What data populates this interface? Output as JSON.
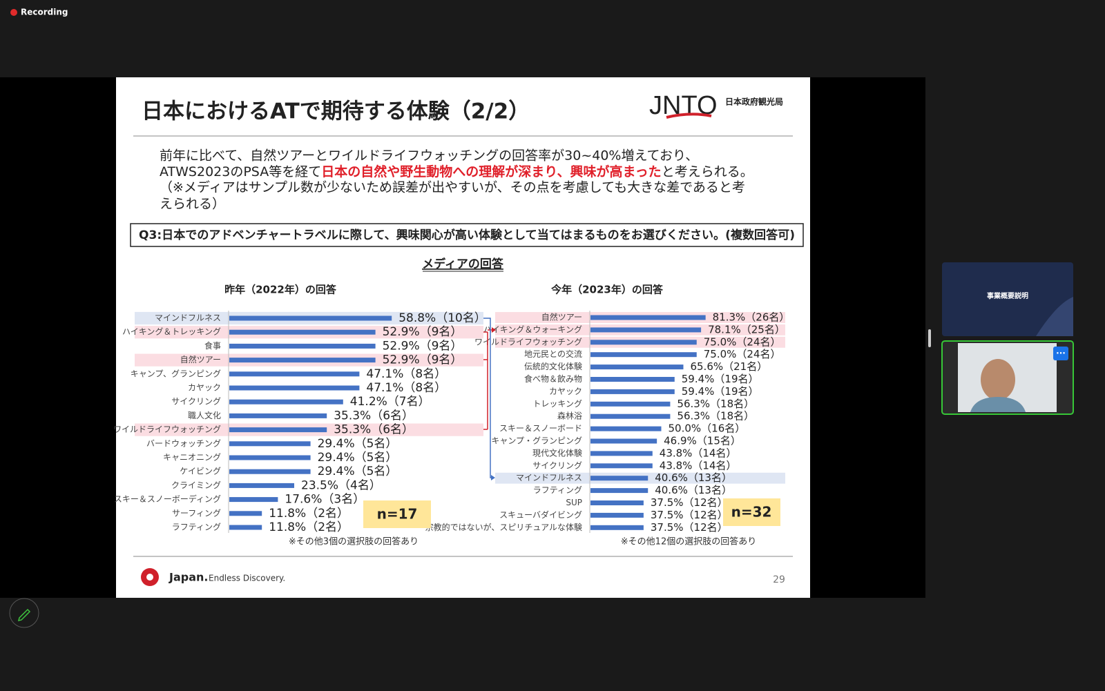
{
  "recording": "Recording",
  "slide": {
    "title": "日本におけるATで期待する体験（2/2）",
    "logo": "JNTO",
    "org": "日本政府観光局",
    "body": {
      "line1": "前年に比べて、自然ツアーとワイルドライフウォッチングの回答率が30~40%増えており、",
      "line2_pre": "ATWS2023のPSA等を経て",
      "line2_red": "日本の自然や野生動物への理解が深まり、興味が高まった",
      "line2_post": "と考えられる。",
      "line3": "（※メディアはサンプル数が少ないため誤差が出やすいが、その点を考慮しても大きな差であると考",
      "line4": "えられる）"
    },
    "question": "Q3:日本でのアドベンチャートラベルに際して、興味関心が高い体験として当てはまるものをお選びください。(複数回答可)",
    "section": "メディアの回答",
    "footer_brand": "Japan.",
    "footer_tagline": "Endless Discovery.",
    "page": "29"
  },
  "chart_data": [
    {
      "type": "bar",
      "title": "昨年（2022年）の回答",
      "categories": [
        "マインドフルネス",
        "ハイキング＆トレッキング",
        "食事",
        "自然ツアー",
        "キャンプ、グランピング",
        "カヤック",
        "サイクリング",
        "職人文化",
        "ワイルドライフウォッチング",
        "バードウォッチング",
        "キャニオニング",
        "ケイビング",
        "クライミング",
        "スキー＆スノーボーディング",
        "サーフィング",
        "ラフティング"
      ],
      "values": [
        58.8,
        52.9,
        52.9,
        52.9,
        47.1,
        47.1,
        41.2,
        35.3,
        35.3,
        29.4,
        29.4,
        29.4,
        23.5,
        17.6,
        11.8,
        11.8
      ],
      "value_labels": [
        "58.8%（10名）",
        "52.9%（9名）",
        "52.9%（9名）",
        "52.9%（9名）",
        "47.1%（8名）",
        "47.1%（8名）",
        "41.2%（7名）",
        "35.3%（6名）",
        "35.3%（6名）",
        "29.4%（5名）",
        "29.4%（5名）",
        "29.4%（5名）",
        "23.5%（4名）",
        "17.6%（3名）",
        "11.8%（2名）",
        "11.8%（2名）"
      ],
      "color": "#4472c4",
      "row_colors": [
        "#dfe6f3",
        "#fbdde2",
        null,
        "#fbdde2",
        null,
        null,
        null,
        null,
        "#fbdde2",
        null,
        null,
        null,
        null,
        null,
        null,
        null
      ],
      "n_label": "n=17",
      "note": "※その他3個の選択肢の回答あり"
    },
    {
      "type": "bar",
      "title": "今年（2023年）の回答",
      "categories": [
        "自然ツアー",
        "ハイキング＆ウォーキング",
        "ワイルドライフウォッチング",
        "地元民との交流",
        "伝統的文化体験",
        "食べ物＆飲み物",
        "カヤック",
        "トレッキング",
        "森林浴",
        "スキー＆スノーボード",
        "キャンプ・グランピング",
        "現代文化体験",
        "サイクリング",
        "マインドフルネス",
        "ラフティング",
        "SUP",
        "スキューバダイビング",
        "宗教的ではないが、スピリチュアルな体験"
      ],
      "values": [
        81.3,
        78.1,
        75.0,
        75.0,
        65.6,
        59.4,
        59.4,
        56.3,
        56.3,
        50.0,
        46.9,
        43.8,
        43.8,
        40.6,
        40.6,
        37.5,
        37.5,
        37.5
      ],
      "value_labels": [
        "81.3%（26名）",
        "78.1%（25名）",
        "75.0%（24名）",
        "75.0%（24名）",
        "65.6%（21名）",
        "59.4%（19名）",
        "59.4%（19名）",
        "56.3%（18名）",
        "56.3%（18名）",
        "50.0%（16名）",
        "46.9%（15名）",
        "43.8%（14名）",
        "43.8%（14名）",
        "40.6%（13名）",
        "40.6%（13名）",
        "37.5%（12名）",
        "37.5%（12名）",
        "37.5%（12名）"
      ],
      "color": "#4472c4",
      "row_colors": [
        "#fbdde2",
        "#fbdde2",
        "#fbdde2",
        null,
        null,
        null,
        null,
        null,
        null,
        null,
        null,
        null,
        null,
        "#dfe6f3",
        null,
        null,
        null,
        null
      ],
      "n_label": "n=32",
      "note": "※その他12個の選択肢の回答あり"
    }
  ],
  "thumbnail": {
    "title": "事業概要説明"
  }
}
